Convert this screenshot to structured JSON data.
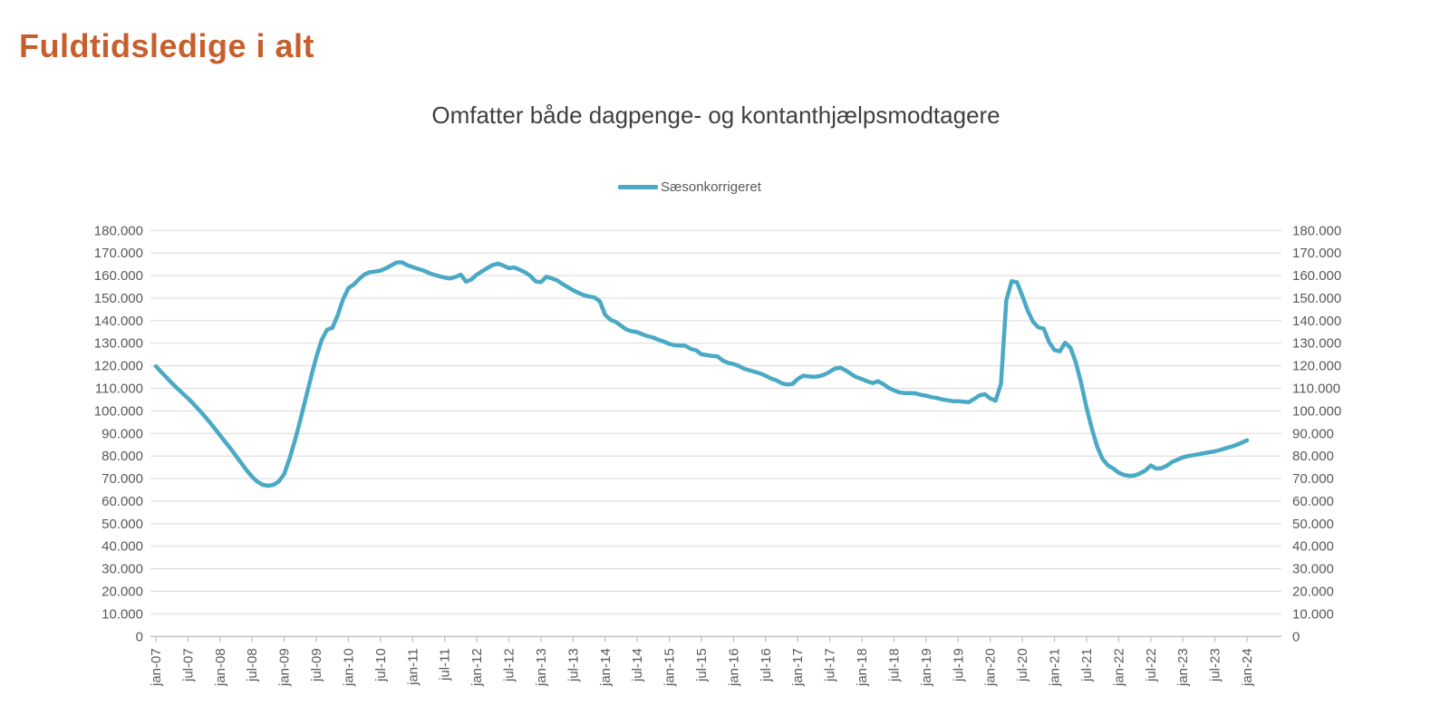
{
  "page_title": "Fuldtidsledige i alt",
  "colors": {
    "title": "#C75F2D",
    "subtitle": "#3F3F3F",
    "axis_text": "#595959",
    "gridline": "#D9D9D9",
    "axis_line": "#BFBFBF",
    "series": "#4AA9C5",
    "background": "#FFFFFF"
  },
  "legend": {
    "label": "Sæsonkorrigeret",
    "swatch": "line",
    "position": "top-center"
  },
  "chart_data": {
    "type": "line",
    "title": "Omfatter både dagpenge- og kontanthjælpsmodtagere",
    "xlabel": "",
    "ylabel": "",
    "ylim": [
      0,
      180000
    ],
    "y_tick_step": 10000,
    "y_tick_labels_top_to_bottom": [
      "180.000",
      "170.000",
      "160.000",
      "150.000",
      "140.000",
      "130.000",
      "120.000",
      "110.000",
      "100.000",
      "90.000",
      "80.000",
      "70.000",
      "60.000",
      "50.000",
      "40.000",
      "30.000",
      "20.000",
      "10.000",
      "0"
    ],
    "y_axis_sides": "both",
    "grid": "horizontal",
    "legend_position": "top-center",
    "x_frequency": "monthly",
    "x_start": "jan-07",
    "x_end": "jan-24",
    "x_tick_interval_months": 6,
    "x_tick_labels": [
      "jan-07",
      "jul-07",
      "jan-08",
      "jul-08",
      "jan-09",
      "jul-09",
      "jan-10",
      "jul-10",
      "jan-11",
      "jul-11",
      "jan-12",
      "jul-12",
      "jan-13",
      "jul-13",
      "jan-14",
      "jul-14",
      "jan-15",
      "jul-15",
      "jan-16",
      "jul-16",
      "jan-17",
      "jul-17",
      "jan-18",
      "jul-18",
      "jan-19",
      "jul-19",
      "jan-20",
      "jul-20",
      "jan-21",
      "jul-21",
      "jan-22",
      "jul-22",
      "jan-23",
      "jul-23",
      "jan-24"
    ],
    "series": [
      {
        "name": "Sæsonkorrigeret",
        "color": "#4AA9C5",
        "values": [
          119800,
          117300,
          114800,
          112300,
          110000,
          107800,
          105600,
          103200,
          100600,
          98000,
          95200,
          92200,
          89200,
          86200,
          83200,
          80000,
          76800,
          73600,
          70800,
          68600,
          67200,
          66800,
          67200,
          68800,
          72000,
          79000,
          87000,
          96000,
          105500,
          115000,
          124000,
          131500,
          136000,
          136800,
          142500,
          149500,
          154500,
          156000,
          158500,
          160500,
          161500,
          161800,
          162200,
          163200,
          164500,
          165800,
          165900,
          164600,
          163800,
          163000,
          162300,
          161200,
          160400,
          159700,
          159100,
          158700,
          159400,
          160400,
          157300,
          158300,
          160400,
          161900,
          163400,
          164700,
          165300,
          164400,
          163300,
          163600,
          162600,
          161500,
          159900,
          157400,
          157100,
          159500,
          158800,
          157900,
          156300,
          154900,
          153500,
          152300,
          151300,
          150700,
          150300,
          148600,
          142600,
          140400,
          139400,
          137700,
          136100,
          135300,
          134900,
          133900,
          133100,
          132500,
          131500,
          130700,
          129700,
          129100,
          129000,
          128900,
          127500,
          126900,
          125100,
          124700,
          124400,
          124200,
          122300,
          121300,
          120800,
          119900,
          118700,
          118000,
          117300,
          116600,
          115600,
          114400,
          113600,
          112300,
          111700,
          111900,
          114100,
          115600,
          115300,
          115100,
          115400,
          116100,
          117400,
          118800,
          119100,
          117900,
          116300,
          114900,
          114100,
          113100,
          112300,
          113200,
          111900,
          110200,
          109100,
          108200,
          107900,
          107900,
          107800,
          107100,
          106700,
          106100,
          105700,
          105100,
          104700,
          104300,
          104300,
          104100,
          103900,
          105300,
          106900,
          107400,
          105500,
          104500,
          112000,
          149000,
          157500,
          157000,
          151000,
          144500,
          139500,
          137000,
          136500,
          130500,
          127000,
          126400,
          130200,
          128000,
          121500,
          112300,
          101500,
          92000,
          84000,
          78600,
          75800,
          74400,
          72600,
          71600,
          71200,
          71400,
          72300,
          73600,
          75800,
          74400,
          74600,
          75700,
          77400,
          78400,
          79400,
          80000,
          80400,
          80800,
          81300,
          81700,
          82100,
          82700,
          83400,
          84100,
          84900,
          85900,
          87000
        ]
      }
    ]
  }
}
